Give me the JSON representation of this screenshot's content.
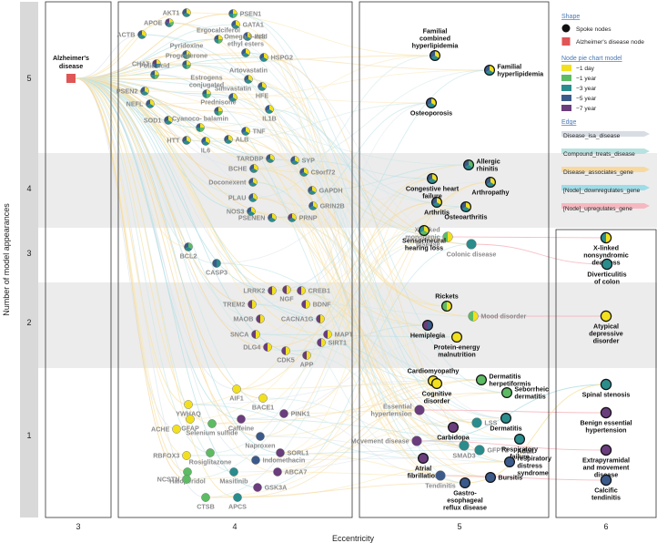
{
  "axes": {
    "x_title": "Eccentricity",
    "y_title": "Number of model appearances",
    "x_ticks": [
      "3",
      "4",
      "5",
      "6"
    ],
    "y_ticks": [
      "1",
      "2",
      "3",
      "4",
      "5"
    ]
  },
  "legend": {
    "shape_title": "Shape",
    "shape_items": [
      {
        "label": "Spoke nodes",
        "symbol": "circle",
        "color": "#111111"
      },
      {
        "label": "Alzheimer's disease node",
        "symbol": "square",
        "color": "#e05555"
      }
    ],
    "model_title": "Node pie chart model",
    "model_items": [
      {
        "label": "−1 day",
        "color": "#f2e01e"
      },
      {
        "label": "−1 year",
        "color": "#5dbb63"
      },
      {
        "label": "−3 year",
        "color": "#2a8c8c"
      },
      {
        "label": "−5 year",
        "color": "#3b5a8a"
      },
      {
        "label": "−7 year",
        "color": "#6a3d7c"
      }
    ],
    "edge_title": "Edge",
    "edge_items": [
      {
        "label": "Disease_isa_disease",
        "color": "#d8dde4"
      },
      {
        "label": "Compound_treats_disease",
        "color": "#b8e2e0"
      },
      {
        "label": "Disease_associates_gene",
        "color": "#f7d9a0"
      },
      {
        "label": "[Node]_downregulates_gene",
        "color": "#9edce8"
      },
      {
        "label": "[Node]_upregulates_gene",
        "color": "#f6b8c0"
      }
    ]
  },
  "colors": {
    "day1": "#f2e01e",
    "year1": "#5dbb63",
    "year3": "#2a8c8c",
    "year5": "#3b5a8a",
    "year7": "#6a3d7c",
    "ad": "#e05555",
    "band": "#ececec",
    "axis_bar": "#d9d9d9"
  },
  "center_node": {
    "label_line1": "Alzheimer's",
    "label_line2": "disease",
    "eccentricity": 3,
    "appearances": 5
  },
  "nodes_ecc4": [
    {
      "name": "AKT1",
      "appearances": 5,
      "pie": [
        "day1",
        "year3",
        "year5"
      ]
    },
    {
      "name": "PSEN1",
      "appearances": 5,
      "pie": [
        "day1",
        "year1",
        "year3",
        "year5"
      ]
    },
    {
      "name": "APOE",
      "appearances": 5,
      "pie": [
        "day1",
        "year1",
        "year3",
        "year5",
        "year7"
      ]
    },
    {
      "name": "GATA1",
      "appearances": 5,
      "pie": [
        "day1",
        "year3",
        "year5"
      ]
    },
    {
      "name": "Ergocalciferol",
      "appearances": 5,
      "pie": [
        "day1",
        "year1",
        "year3",
        "year5"
      ]
    },
    {
      "name": "ACTB",
      "appearances": 5,
      "pie": [
        "day1",
        "year3",
        "year5"
      ]
    },
    {
      "name": "INS",
      "appearances": 5,
      "pie": [
        "day1",
        "year3",
        "year5"
      ]
    },
    {
      "name": "Pyridoxine",
      "appearances": 5,
      "pie": [
        "day1",
        "year1",
        "year3",
        "year5"
      ]
    },
    {
      "name": "Omega-3-acid ethyl esters",
      "appearances": 5,
      "pie": [
        "day1",
        "year3",
        "year5"
      ]
    },
    {
      "name": "Progesterone",
      "appearances": 5,
      "pie": [
        "day1",
        "year1",
        "year3",
        "year5"
      ]
    },
    {
      "name": "HSPG2",
      "appearances": 5,
      "pie": [
        "day1",
        "year3",
        "year5"
      ]
    },
    {
      "name": "CHAT",
      "appearances": 5,
      "pie": [
        "day1",
        "year3",
        "year5",
        "year7"
      ]
    },
    {
      "name": "Folic acid",
      "appearances": 5,
      "pie": [
        "day1",
        "year1",
        "year3",
        "year5"
      ]
    },
    {
      "name": "Artovastatin",
      "appearances": 5,
      "pie": [
        "day1",
        "year3",
        "year5"
      ]
    },
    {
      "name": "PSEN2",
      "appearances": 5,
      "pie": [
        "day1",
        "year3",
        "year5"
      ]
    },
    {
      "name": "HFE",
      "appearances": 5,
      "pie": [
        "day1",
        "year3",
        "year5"
      ]
    },
    {
      "name": "Estrogens conjugated",
      "appearances": 5,
      "pie": [
        "day1",
        "year1",
        "year3",
        "year5"
      ]
    },
    {
      "name": "Simvastatin",
      "appearances": 5,
      "pie": [
        "day1",
        "year3",
        "year5"
      ]
    },
    {
      "name": "NEFL",
      "appearances": 5,
      "pie": [
        "day1",
        "year3",
        "year5"
      ]
    },
    {
      "name": "Prednisone",
      "appearances": 5,
      "pie": [
        "day1",
        "year1",
        "year3",
        "year5"
      ]
    },
    {
      "name": "IL1B",
      "appearances": 5,
      "pie": [
        "day1",
        "year3",
        "year5"
      ]
    },
    {
      "name": "SOD1",
      "appearances": 5,
      "pie": [
        "day1",
        "year3",
        "year5"
      ]
    },
    {
      "name": "Cyanoco- balamin",
      "appearances": 5,
      "pie": [
        "day1",
        "year1",
        "year3",
        "year5"
      ]
    },
    {
      "name": "TNF",
      "appearances": 5,
      "pie": [
        "day1",
        "year3",
        "year5"
      ]
    },
    {
      "name": "HTT",
      "appearances": 5,
      "pie": [
        "day1",
        "year3",
        "year5"
      ]
    },
    {
      "name": "IL6",
      "appearances": 5,
      "pie": [
        "day1",
        "year3",
        "year5"
      ]
    },
    {
      "name": "ALB",
      "appearances": 5,
      "pie": [
        "day1",
        "year3",
        "year5"
      ]
    },
    {
      "name": "TARDBP",
      "appearances": 4,
      "pie": [
        "day1",
        "year3",
        "year5"
      ]
    },
    {
      "name": "SYP",
      "appearances": 4,
      "pie": [
        "day1",
        "year3",
        "year5"
      ]
    },
    {
      "name": "BCHE",
      "appearances": 4,
      "pie": [
        "day1",
        "year3",
        "year5"
      ]
    },
    {
      "name": "C9orf72",
      "appearances": 4,
      "pie": [
        "day1",
        "year3",
        "year5"
      ]
    },
    {
      "name": "Doconexent",
      "appearances": 4,
      "pie": [
        "day1",
        "year3",
        "year5"
      ]
    },
    {
      "name": "GAPDH",
      "appearances": 4,
      "pie": [
        "day1",
        "year3",
        "year5"
      ]
    },
    {
      "name": "PLAU",
      "appearances": 4,
      "pie": [
        "day1",
        "year3",
        "year5"
      ]
    },
    {
      "name": "NOS3",
      "appearances": 4,
      "pie": [
        "day1",
        "year3",
        "year5"
      ]
    },
    {
      "name": "GRIN2B",
      "appearances": 4,
      "pie": [
        "day1",
        "year3",
        "year5"
      ]
    },
    {
      "name": "PSENEN",
      "appearances": 4,
      "pie": [
        "day1",
        "year3",
        "year5"
      ]
    },
    {
      "name": "PRNP",
      "appearances": 4,
      "pie": [
        "day1",
        "year3",
        "year7"
      ]
    },
    {
      "name": "BCL2",
      "appearances": 3,
      "pie": [
        "year1",
        "year3",
        "year5"
      ]
    },
    {
      "name": "CASP3",
      "appearances": 3,
      "pie": [
        "year3",
        "year5"
      ]
    },
    {
      "name": "LRRK2",
      "appearances": 2,
      "pie": [
        "day1",
        "year7"
      ]
    },
    {
      "name": "NGF",
      "appearances": 2,
      "pie": [
        "day1",
        "year7"
      ]
    },
    {
      "name": "CREB1",
      "appearances": 2,
      "pie": [
        "day1",
        "year7"
      ]
    },
    {
      "name": "TREM2",
      "appearances": 2,
      "pie": [
        "day1",
        "year7"
      ]
    },
    {
      "name": "BDNF",
      "appearances": 2,
      "pie": [
        "day1",
        "year7"
      ]
    },
    {
      "name": "MAOB",
      "appearances": 2,
      "pie": [
        "day1",
        "year7"
      ]
    },
    {
      "name": "CACNA1G",
      "appearances": 2,
      "pie": [
        "day1",
        "year7"
      ]
    },
    {
      "name": "SNCA",
      "appearances": 2,
      "pie": [
        "day1",
        "year7"
      ]
    },
    {
      "name": "MAPT",
      "appearances": 2,
      "pie": [
        "day1",
        "year7"
      ]
    },
    {
      "name": "DLG4",
      "appearances": 2,
      "pie": [
        "day1",
        "year7"
      ]
    },
    {
      "name": "SIRT1",
      "appearances": 2,
      "pie": [
        "day1",
        "year7"
      ]
    },
    {
      "name": "CDK5",
      "appearances": 2,
      "pie": [
        "day1",
        "year7"
      ]
    },
    {
      "name": "APP",
      "appearances": 2,
      "pie": [
        "day1",
        "year7"
      ]
    },
    {
      "name": "AIF1",
      "appearances": 1,
      "pie": [
        "day1"
      ]
    },
    {
      "name": "YWHAQ",
      "appearances": 1,
      "pie": [
        "day1"
      ]
    },
    {
      "name": "BACE1",
      "appearances": 1,
      "pie": [
        "day1"
      ]
    },
    {
      "name": "GFAP",
      "appearances": 1,
      "pie": [
        "day1"
      ]
    },
    {
      "name": "PINK1",
      "appearances": 1,
      "pie": [
        "year7"
      ]
    },
    {
      "name": "Caffeine",
      "appearances": 1,
      "pie": [
        "year7"
      ]
    },
    {
      "name": "ACHE",
      "appearances": 1,
      "pie": [
        "day1"
      ]
    },
    {
      "name": "Selenium sulfide",
      "appearances": 1,
      "pie": [
        "year1"
      ]
    },
    {
      "name": "Naproxen",
      "appearances": 1,
      "pie": [
        "year5"
      ]
    },
    {
      "name": "RBFOX3",
      "appearances": 1,
      "pie": [
        "day1"
      ]
    },
    {
      "name": "Rosiglitazone",
      "appearances": 1,
      "pie": [
        "year1"
      ]
    },
    {
      "name": "SORL1",
      "appearances": 1,
      "pie": [
        "year7"
      ]
    },
    {
      "name": "Indomethacin",
      "appearances": 1,
      "pie": [
        "year5"
      ]
    },
    {
      "name": "Haloperidol",
      "appearances": 1,
      "pie": [
        "year1"
      ]
    },
    {
      "name": "NCSTN",
      "appearances": 1,
      "pie": [
        "year1"
      ]
    },
    {
      "name": "ABCA7",
      "appearances": 1,
      "pie": [
        "year7"
      ]
    },
    {
      "name": "Masitinib",
      "appearances": 1,
      "pie": [
        "year3"
      ]
    },
    {
      "name": "GSK3A",
      "appearances": 1,
      "pie": [
        "year7"
      ]
    },
    {
      "name": "CTSB",
      "appearances": 1,
      "pie": [
        "year1"
      ]
    },
    {
      "name": "APCS",
      "appearances": 1,
      "pie": [
        "year3"
      ]
    }
  ],
  "nodes_ecc5": [
    {
      "name": "Familial combined hyperlipidemia",
      "appearances": 5,
      "pie": [
        "day1",
        "year3",
        "year5"
      ]
    },
    {
      "name": "Familial hyperlipidemia",
      "appearances": 5,
      "pie": [
        "day1",
        "year3",
        "year5"
      ]
    },
    {
      "name": "Osteoporosis",
      "appearances": 5,
      "pie": [
        "day1",
        "year3",
        "year5"
      ]
    },
    {
      "name": "Allergic rhinitis",
      "appearances": 4,
      "pie": [
        "year1",
        "year3",
        "year5"
      ]
    },
    {
      "name": "Congestive heart failure",
      "appearances": 4,
      "pie": [
        "day1",
        "year3",
        "year5"
      ]
    },
    {
      "name": "Arthropathy",
      "appearances": 4,
      "pie": [
        "day1",
        "year3",
        "year5"
      ]
    },
    {
      "name": "Arthritis",
      "appearances": 4,
      "pie": [
        "day1",
        "year3",
        "year5"
      ]
    },
    {
      "name": "Osteoarthritis",
      "appearances": 4,
      "pie": [
        "day1",
        "year3",
        "year5"
      ]
    },
    {
      "name": "X-linked monogenic disease",
      "appearances": 3,
      "pie": [
        "day1",
        "year1"
      ]
    },
    {
      "name": "Sensorineural hearing loss",
      "appearances": 3,
      "pie": [
        "day1",
        "year1",
        "year3"
      ]
    },
    {
      "name": "Colonic disease",
      "appearances": 3,
      "pie": [
        "year3"
      ]
    },
    {
      "name": "Rickets",
      "appearances": 2,
      "pie": [
        "day1",
        "year1"
      ]
    },
    {
      "name": "Mood disorder",
      "appearances": 2,
      "pie": [
        "day1",
        "year1"
      ]
    },
    {
      "name": "Hemiplegia",
      "appearances": 2,
      "pie": [
        "year5",
        "year7"
      ]
    },
    {
      "name": "Protein-energy malnutrition",
      "appearances": 2,
      "pie": [
        "day1"
      ]
    },
    {
      "name": "Cardiomyopathy",
      "appearances": 1,
      "pie": [
        "day1"
      ]
    },
    {
      "name": "Dermatitis herpetiformis",
      "appearances": 1,
      "pie": [
        "year1"
      ]
    },
    {
      "name": "Essential hypertension",
      "appearances": 1,
      "pie": [
        "year7"
      ]
    },
    {
      "name": "Cognitive disorder",
      "appearances": 1,
      "pie": [
        "day1"
      ]
    },
    {
      "name": "Seborrheic dermatitis",
      "appearances": 1,
      "pie": [
        "year1"
      ]
    },
    {
      "name": "Dermatitis",
      "appearances": 1,
      "pie": [
        "year3"
      ]
    },
    {
      "name": "Carbidopa",
      "appearances": 1,
      "pie": [
        "year7"
      ]
    },
    {
      "name": "LSS",
      "appearances": 1,
      "pie": [
        "year3"
      ]
    },
    {
      "name": "Movement disease",
      "appearances": 1,
      "pie": [
        "year7"
      ]
    },
    {
      "name": "SMAD3",
      "appearances": 1,
      "pie": [
        "year3"
      ]
    },
    {
      "name": "GFPT1",
      "appearances": 1,
      "pie": [
        "year3"
      ]
    },
    {
      "name": "Respiratory failure",
      "appearances": 1,
      "pie": [
        "year3"
      ]
    },
    {
      "name": "Atrial fibrillation",
      "appearances": 1,
      "pie": [
        "year7"
      ]
    },
    {
      "name": "Adult respiratory distress syndrome",
      "appearances": 1,
      "pie": [
        "year5"
      ]
    },
    {
      "name": "Tendinitis",
      "appearances": 1,
      "pie": [
        "year5"
      ]
    },
    {
      "name": "Bursitis",
      "appearances": 1,
      "pie": [
        "year5"
      ]
    },
    {
      "name": "Gastro- esophageal reflux disease",
      "appearances": 1,
      "pie": [
        "year5"
      ]
    }
  ],
  "nodes_ecc6": [
    {
      "name": "X-linked nonsyndromic deafness",
      "appearances": 3,
      "pie": [
        "day1",
        "year3"
      ]
    },
    {
      "name": "Diverticulitis of colon",
      "appearances": 3,
      "pie": [
        "year3"
      ]
    },
    {
      "name": "Atypical depressive disorder",
      "appearances": 2,
      "pie": [
        "day1"
      ]
    },
    {
      "name": "Spinal stenosis",
      "appearances": 1,
      "pie": [
        "year3"
      ]
    },
    {
      "name": "Benign essential hypertension",
      "appearances": 1,
      "pie": [
        "year7"
      ]
    },
    {
      "name": "Extrapyramidal and movement disease",
      "appearances": 1,
      "pie": [
        "year7"
      ]
    },
    {
      "name": "Calcific tendinitis",
      "appearances": 1,
      "pie": [
        "year5"
      ]
    }
  ]
}
